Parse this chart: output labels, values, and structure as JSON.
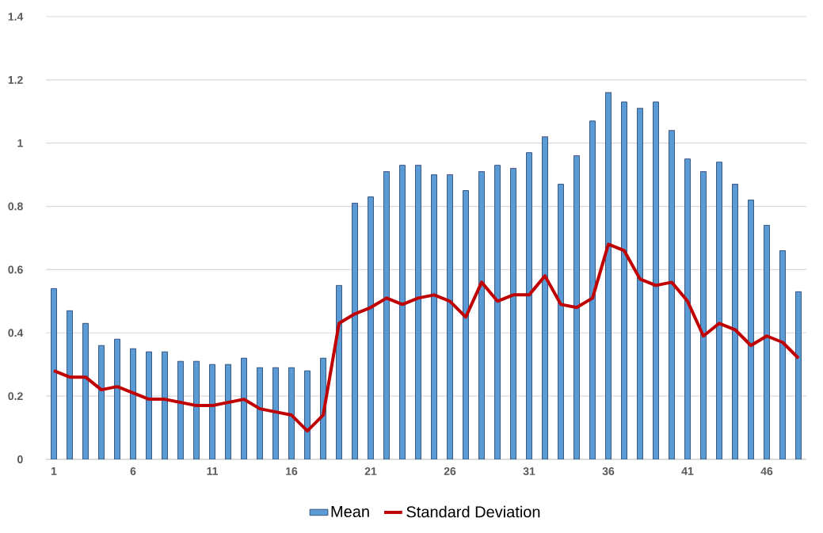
{
  "chart_data": {
    "type": "bar",
    "categories": [
      "1",
      null,
      null,
      null,
      null,
      "6",
      null,
      null,
      null,
      null,
      "11",
      null,
      null,
      null,
      null,
      "16",
      null,
      null,
      null,
      null,
      "21",
      null,
      null,
      null,
      null,
      "26",
      null,
      null,
      null,
      null,
      "31",
      null,
      null,
      null,
      null,
      "36",
      null,
      null,
      null,
      null,
      "41",
      null,
      null,
      null,
      null,
      "46",
      null,
      null
    ],
    "series": [
      {
        "name": "Mean",
        "color": "#5b9bd5",
        "values": [
          0.54,
          0.47,
          0.43,
          0.36,
          0.38,
          0.35,
          0.34,
          0.34,
          0.31,
          0.31,
          0.3,
          0.3,
          0.32,
          0.29,
          0.29,
          0.29,
          0.28,
          0.32,
          0.55,
          0.81,
          0.83,
          0.91,
          0.93,
          0.93,
          0.9,
          0.9,
          0.85,
          0.91,
          0.93,
          0.92,
          0.97,
          1.02,
          0.87,
          0.96,
          1.07,
          1.16,
          1.13,
          1.11,
          1.13,
          1.04,
          0.95,
          0.91,
          0.94,
          0.87,
          0.82,
          0.74,
          0.66,
          0.53
        ]
      },
      {
        "name": "Standard Deviation",
        "type": "line",
        "color": "#c00000",
        "values": [
          0.28,
          0.26,
          0.26,
          0.22,
          0.23,
          0.21,
          0.19,
          0.19,
          0.18,
          0.17,
          0.17,
          0.18,
          0.19,
          0.16,
          0.15,
          0.14,
          0.09,
          0.14,
          0.43,
          0.46,
          0.48,
          0.51,
          0.49,
          0.51,
          0.52,
          0.5,
          0.45,
          0.56,
          0.5,
          0.52,
          0.52,
          0.58,
          0.49,
          0.48,
          0.51,
          0.68,
          0.66,
          0.57,
          0.55,
          0.56,
          0.5,
          0.39,
          0.43,
          0.41,
          0.36,
          0.39,
          0.37,
          0.32
        ]
      }
    ],
    "ylim": [
      0,
      1.4
    ],
    "yticks": [
      0,
      0.2,
      0.4,
      0.6,
      0.8,
      1,
      1.2,
      1.4
    ],
    "grid": "y",
    "legend": "bottom"
  }
}
